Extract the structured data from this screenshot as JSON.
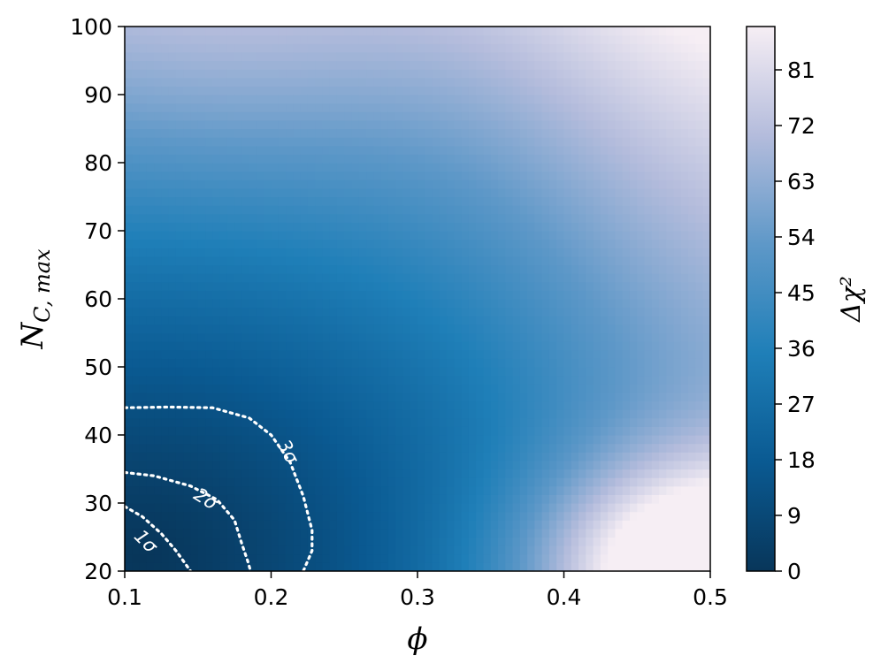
{
  "chart_data": {
    "type": "heatmap",
    "xlabel": "ϕ",
    "ylabel_main": "N",
    "ylabel_sub": "C, max",
    "colorbar_label": "Δχ²",
    "xlim": [
      0.1,
      0.5
    ],
    "ylim": [
      20,
      100
    ],
    "zlim": [
      0,
      88
    ],
    "grid": false,
    "colormap": [
      "#08365a",
      "#0a5a92",
      "#1f7fb8",
      "#5e98c8",
      "#b4bcdc",
      "#f6eef4"
    ],
    "x_ticks": [
      {
        "value": 0.1,
        "label": "0.1"
      },
      {
        "value": 0.2,
        "label": "0.2"
      },
      {
        "value": 0.3,
        "label": "0.3"
      },
      {
        "value": 0.4,
        "label": "0.4"
      },
      {
        "value": 0.5,
        "label": "0.5"
      }
    ],
    "y_ticks": [
      {
        "value": 20,
        "label": "20"
      },
      {
        "value": 30,
        "label": "30"
      },
      {
        "value": 40,
        "label": "40"
      },
      {
        "value": 50,
        "label": "50"
      },
      {
        "value": 60,
        "label": "60"
      },
      {
        "value": 70,
        "label": "70"
      },
      {
        "value": 80,
        "label": "80"
      },
      {
        "value": 90,
        "label": "90"
      },
      {
        "value": 100,
        "label": "100"
      }
    ],
    "colorbar_ticks": [
      {
        "value": 0,
        "label": "0"
      },
      {
        "value": 9,
        "label": "9"
      },
      {
        "value": 18,
        "label": "18"
      },
      {
        "value": 27,
        "label": "27"
      },
      {
        "value": 36,
        "label": "36"
      },
      {
        "value": 45,
        "label": "45"
      },
      {
        "value": 54,
        "label": "54"
      },
      {
        "value": 63,
        "label": "63"
      },
      {
        "value": 72,
        "label": "72"
      },
      {
        "value": 81,
        "label": "81"
      }
    ],
    "contours": [
      {
        "label": "1σ",
        "points": [
          [
            0.1,
            29.5
          ],
          [
            0.112,
            28.0
          ],
          [
            0.125,
            25.5
          ],
          [
            0.135,
            23.0
          ],
          [
            0.145,
            20.0
          ]
        ],
        "label_at": [
          0.114,
          24.3
        ],
        "label_angle": 45
      },
      {
        "label": "2σ",
        "points": [
          [
            0.1,
            34.5
          ],
          [
            0.12,
            34.0
          ],
          [
            0.145,
            32.5
          ],
          [
            0.163,
            30.5
          ],
          [
            0.175,
            27.5
          ],
          [
            0.18,
            24.0
          ],
          [
            0.184,
            21.5
          ],
          [
            0.186,
            20.0
          ]
        ],
        "label_at": [
          0.155,
          30.5
        ],
        "label_angle": 32
      },
      {
        "label": "3σ",
        "points": [
          [
            0.1,
            44.0
          ],
          [
            0.13,
            44.1
          ],
          [
            0.16,
            44.0
          ],
          [
            0.185,
            42.5
          ],
          [
            0.2,
            40.0
          ],
          [
            0.213,
            36.0
          ],
          [
            0.222,
            31.0
          ],
          [
            0.228,
            26.0
          ],
          [
            0.228,
            23.0
          ],
          [
            0.222,
            20.0
          ]
        ],
        "label_at": [
          0.211,
          37.5
        ],
        "label_angle": 62
      }
    ]
  }
}
